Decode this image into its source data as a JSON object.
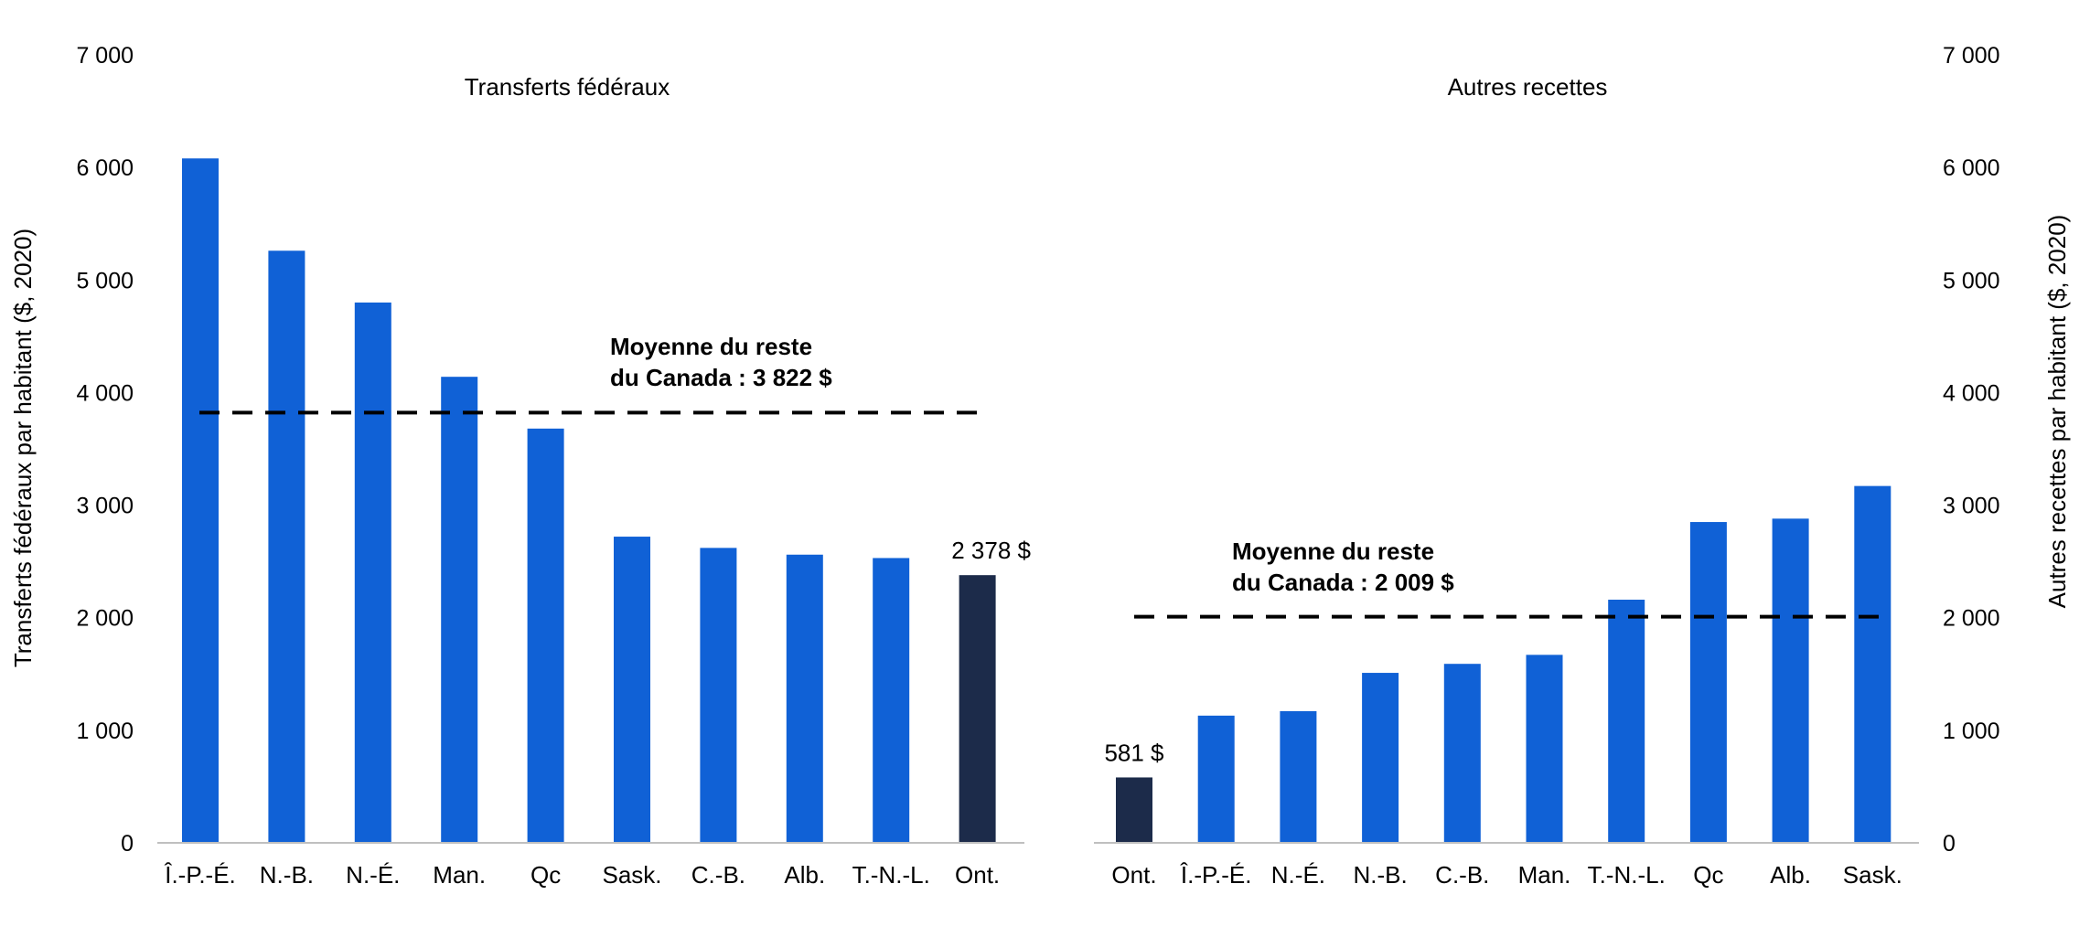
{
  "colors": {
    "bar": "#1061d6",
    "highlight": "#1c2b4a",
    "baseline": "#bfbfbf",
    "average_line": "#000000"
  },
  "chart_data": [
    {
      "type": "bar",
      "title": "Transferts fédéraux",
      "ylabel": "Transferts fédéraux par habitant ($, 2020)",
      "axis_side": "left",
      "ylim": [
        0,
        7000
      ],
      "yticks": [
        "0",
        "1 000",
        "2 000",
        "3 000",
        "4 000",
        "5 000",
        "6 000",
        "7 000"
      ],
      "categories": [
        "Î.-P.-É.",
        "N.-B.",
        "N.-É.",
        "Man.",
        "Qc",
        "Sask.",
        "C.-B.",
        "Alb.",
        "T.-N.-L.",
        "Ont."
      ],
      "values": [
        6080,
        5260,
        4800,
        4140,
        3680,
        2720,
        2620,
        2560,
        2530,
        2378
      ],
      "highlight_index": 9,
      "highlight_label": "2 378 $",
      "average": {
        "value": 3822,
        "label_line1": "Moyenne du reste",
        "label_line2": "du Canada : 3 822 $"
      },
      "grid": false
    },
    {
      "type": "bar",
      "title": "Autres recettes",
      "ylabel": "Autres recettes par habitant ($, 2020)",
      "axis_side": "right",
      "ylim": [
        0,
        7000
      ],
      "yticks": [
        "0",
        "1 000",
        "2 000",
        "3 000",
        "4 000",
        "5 000",
        "6 000",
        "7 000"
      ],
      "categories": [
        "Ont.",
        "Î.-P.-É.",
        "N.-É.",
        "N.-B.",
        "C.-B.",
        "Man.",
        "T.-N.-L.",
        "Qc",
        "Alb.",
        "Sask."
      ],
      "values": [
        581,
        1130,
        1170,
        1510,
        1590,
        1670,
        2160,
        2850,
        2880,
        3170
      ],
      "highlight_index": 0,
      "highlight_label": "581 $",
      "average": {
        "value": 2009,
        "label_line1": "Moyenne du reste",
        "label_line2": "du Canada : 2 009 $"
      },
      "grid": false
    }
  ]
}
